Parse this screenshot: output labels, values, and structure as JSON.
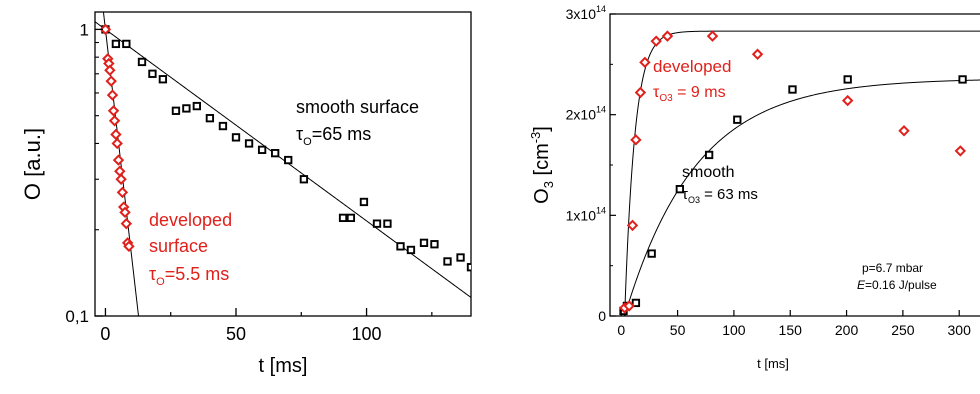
{
  "chart_data": [
    {
      "type": "scatter",
      "title": "",
      "xlabel": "t [ms]",
      "ylabel": "O [a.u.]",
      "yscale": "log",
      "xlim": [
        -4,
        140
      ],
      "ylim": [
        0.1,
        1.15
      ],
      "xticks": [
        0,
        50,
        100
      ],
      "xtick_labels": [
        "0",
        "50",
        "100"
      ],
      "yticks": [
        0.1,
        1
      ],
      "ytick_labels": [
        "0,1",
        "1"
      ],
      "series": [
        {
          "name": "",
          "marker": "square",
          "color": "#000000",
          "x": [
            0,
            4,
            8,
            14,
            18,
            22,
            27,
            31,
            35,
            40,
            45,
            50,
            55,
            60,
            65,
            70,
            76,
            91,
            94,
            99,
            104,
            108,
            113,
            117,
            122,
            126,
            131,
            136,
            140
          ],
          "y": [
            1.0,
            0.89,
            0.89,
            0.77,
            0.7,
            0.67,
            0.52,
            0.53,
            0.54,
            0.49,
            0.46,
            0.42,
            0.4,
            0.38,
            0.37,
            0.35,
            0.3,
            0.22,
            0.22,
            0.25,
            0.21,
            0.21,
            0.175,
            0.17,
            0.18,
            0.178,
            0.155,
            0.16,
            0.148
          ]
        },
        {
          "name": "",
          "marker": "diamond",
          "color": "#e0201b",
          "x": [
            0,
            0.9,
            1.3,
            1.7,
            2.2,
            2.7,
            3.1,
            3.5,
            4.0,
            4.5,
            5.0,
            5.5,
            6.0,
            6.5,
            7.0,
            7.5,
            8.0,
            8.5,
            9.0
          ],
          "y": [
            1.0,
            0.79,
            0.76,
            0.72,
            0.66,
            0.59,
            0.52,
            0.48,
            0.43,
            0.4,
            0.35,
            0.32,
            0.3,
            0.27,
            0.24,
            0.23,
            0.21,
            0.18,
            0.175
          ]
        }
      ],
      "fits": [
        {
          "name": "smooth-fit",
          "tau": 65,
          "a": 1.0
        },
        {
          "name": "developed-fit",
          "tau": 5.5,
          "a": 1.0
        }
      ],
      "annotations": [
        {
          "text": "smooth surface",
          "color": "#000000"
        },
        {
          "text": "τ",
          "sub": "O",
          "rest": "=65 ms",
          "color": "#000000"
        },
        {
          "text": "developed",
          "color": "#e0201b"
        },
        {
          "text": "surface",
          "color": "#e0201b"
        },
        {
          "text": "τ",
          "sub": "O",
          "rest": "=5.5 ms",
          "color": "#e0201b"
        }
      ]
    },
    {
      "type": "scatter",
      "title": "",
      "xlabel": "t [ms]",
      "ylabel": "O",
      "ylabel_sub": "3",
      "ylabel_rest": " [cm",
      "ylabel_sup": "-3",
      "ylabel_end": "]",
      "xlim": [
        -10,
        330
      ],
      "ylim": [
        0,
        300000000000000.0
      ],
      "xticks": [
        0,
        50,
        100,
        150,
        200,
        250,
        300
      ],
      "xtick_labels": [
        "0",
        "50",
        "100",
        "150",
        "200",
        "250",
        "300"
      ],
      "yticks": [
        0,
        100000000000000.0,
        200000000000000.0,
        300000000000000.0
      ],
      "ytick_labels": [
        {
          "base": "0",
          "exp": ""
        },
        {
          "base": "1x10",
          "exp": "14"
        },
        {
          "base": "2x10",
          "exp": "14"
        },
        {
          "base": "3x10",
          "exp": "14"
        }
      ],
      "series": [
        {
          "name": "",
          "marker": "square",
          "color": "#000000",
          "x": [
            2,
            5,
            13,
            27,
            52,
            78,
            103,
            152,
            201,
            303
          ],
          "y": [
            5000000000000.0,
            10000000000000.0,
            13000000000000.0,
            62000000000000.0,
            126000000000000.0,
            160000000000000.0,
            195000000000000.0,
            225000000000000.0,
            235000000000000.0,
            235000000000000.0
          ]
        },
        {
          "name": "",
          "marker": "diamond",
          "color": "#e0201b",
          "x": [
            3,
            7,
            10,
            13,
            17,
            21,
            31,
            41,
            81,
            121,
            201,
            251,
            301
          ],
          "y": [
            8000000000000.0,
            10000000000000.0,
            90000000000000.0,
            175000000000000.0,
            222000000000000.0,
            252000000000000.0,
            273000000000000.0,
            278000000000000.0,
            278000000000000.0,
            260000000000000.0,
            214000000000000.0,
            184000000000000.0,
            164000000000000.0
          ]
        }
      ],
      "fits": [
        {
          "name": "smooth-fit",
          "tau": 63,
          "a": 236000000000000.0,
          "t0": 3
        },
        {
          "name": "developed-fit",
          "tau": 9,
          "a": 283000000000000.0,
          "t0": 3
        }
      ],
      "annotations": [
        {
          "text": "developed",
          "color": "#e0201b"
        },
        {
          "text": "τ",
          "sub": "O3",
          "rest": " = 9 ms",
          "color": "#e0201b"
        },
        {
          "text": "smooth",
          "color": "#000000"
        },
        {
          "text": "τ",
          "sub": "O3",
          "rest": " = 63 ms",
          "color": "#000000"
        },
        {
          "text": "p=6.7 mbar",
          "color": "#000000"
        },
        {
          "text": "E",
          "italic": true,
          "rest": "=0.16 J/pulse",
          "color": "#000000"
        }
      ]
    }
  ]
}
